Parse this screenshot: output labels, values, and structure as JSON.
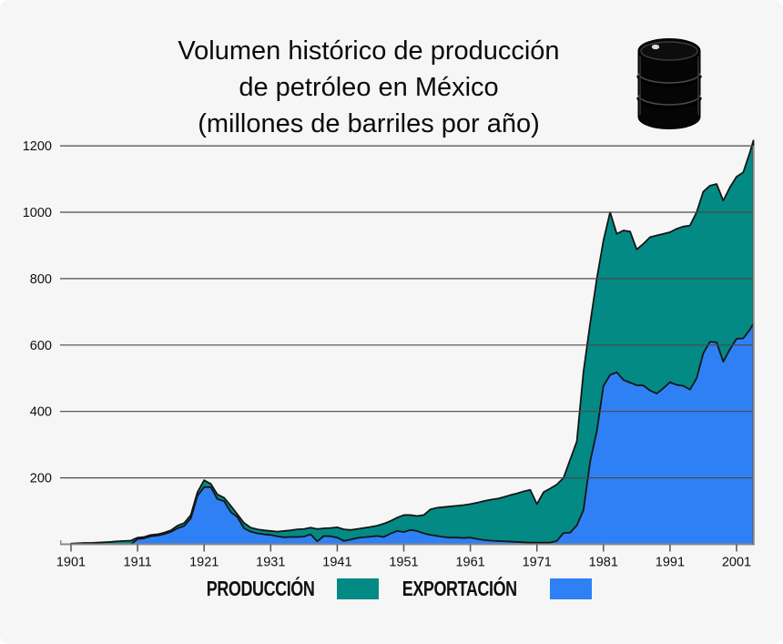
{
  "title": {
    "line1": "Volumen histórico de producción",
    "line2": "de petróleo en México",
    "line3": "(millones de barriles por año)"
  },
  "legend": {
    "production_label": "PRODUCCIÓN",
    "export_label": "EXPORTACIÓN"
  },
  "icons": {
    "barrel": "oil-barrel-icon"
  },
  "colors": {
    "background": "#f6f6f6",
    "production": "#048a84",
    "export": "#2f80f4",
    "outline": "#151515",
    "gridline": "#4a4a4a",
    "axis": "#8a8a8a",
    "text": "#101010"
  },
  "chart_data": {
    "type": "area",
    "stacked": false,
    "title": "Volumen histórico de producción de petróleo en México (millones de barriles por año)",
    "xlabel": "",
    "ylabel": "",
    "xlim": [
      1901,
      2004
    ],
    "ylim": [
      0,
      1250
    ],
    "x_ticks": [
      1901,
      1911,
      1921,
      1931,
      1941,
      1951,
      1961,
      1971,
      1981,
      1991,
      2001
    ],
    "y_ticks": [
      200,
      400,
      600,
      800,
      1000,
      1200
    ],
    "grid": "horizontal",
    "legend_position": "bottom",
    "years": [
      1901,
      1902,
      1903,
      1904,
      1905,
      1906,
      1907,
      1908,
      1909,
      1910,
      1911,
      1912,
      1913,
      1914,
      1915,
      1916,
      1917,
      1918,
      1919,
      1920,
      1921,
      1922,
      1923,
      1924,
      1925,
      1926,
      1927,
      1928,
      1929,
      1930,
      1931,
      1932,
      1933,
      1934,
      1935,
      1936,
      1937,
      1938,
      1939,
      1940,
      1941,
      1942,
      1943,
      1944,
      1945,
      1946,
      1947,
      1948,
      1949,
      1950,
      1951,
      1952,
      1953,
      1954,
      1955,
      1956,
      1957,
      1958,
      1959,
      1960,
      1961,
      1962,
      1963,
      1964,
      1965,
      1966,
      1967,
      1968,
      1969,
      1970,
      1971,
      1972,
      1973,
      1974,
      1975,
      1976,
      1977,
      1978,
      1979,
      1980,
      1981,
      1982,
      1983,
      1984,
      1985,
      1986,
      1987,
      1988,
      1989,
      1990,
      1991,
      1992,
      1993,
      1994,
      1995,
      1996,
      1997,
      1998,
      1999,
      2000,
      2001,
      2002,
      2003,
      2004
    ],
    "series": [
      {
        "name": "PRODUCCIÓN",
        "color": "#048a84",
        "values": [
          2,
          3,
          4,
          4,
          5,
          6,
          7,
          9,
          10,
          11,
          20,
          22,
          28,
          30,
          35,
          42,
          56,
          64,
          88,
          157,
          193,
          182,
          150,
          140,
          116,
          90,
          64,
          50,
          45,
          42,
          40,
          38,
          40,
          42,
          45,
          46,
          50,
          46,
          48,
          49,
          51,
          45,
          43,
          46,
          49,
          52,
          56,
          62,
          70,
          80,
          88,
          88,
          85,
          88,
          105,
          110,
          112,
          114,
          116,
          118,
          121,
          125,
          130,
          134,
          137,
          142,
          148,
          153,
          159,
          164,
          121,
          157,
          168,
          180,
          200,
          255,
          310,
          520,
          665,
          800,
          915,
          1000,
          935,
          945,
          942,
          888,
          905,
          925,
          930,
          935,
          940,
          950,
          957,
          960,
          1000,
          1062,
          1080,
          1085,
          1035,
          1075,
          1107,
          1120,
          1180,
          1216
        ]
      },
      {
        "name": "EXPORTACIÓN",
        "color": "#2f80f4",
        "values": [
          0,
          0,
          0,
          0,
          0,
          0,
          0,
          0,
          0,
          0,
          16,
          18,
          24,
          26,
          31,
          37,
          48,
          55,
          78,
          146,
          172,
          172,
          136,
          130,
          97,
          82,
          48,
          38,
          33,
          30,
          28,
          24,
          21,
          22,
          22,
          23,
          30,
          9,
          25,
          24,
          20,
          10,
          14,
          19,
          21,
          23,
          25,
          22,
          32,
          40,
          37,
          43,
          40,
          33,
          28,
          25,
          22,
          20,
          20,
          19,
          20,
          16,
          13,
          11,
          10,
          9,
          8,
          7,
          6,
          5,
          5,
          5,
          5,
          10,
          34,
          35,
          57,
          103,
          249,
          340,
          477,
          510,
          518,
          495,
          487,
          479,
          478,
          463,
          454,
          470,
          488,
          480,
          477,
          466,
          500,
          575,
          610,
          608,
          550,
          587,
          619,
          620,
          646,
          665
        ]
      }
    ]
  }
}
